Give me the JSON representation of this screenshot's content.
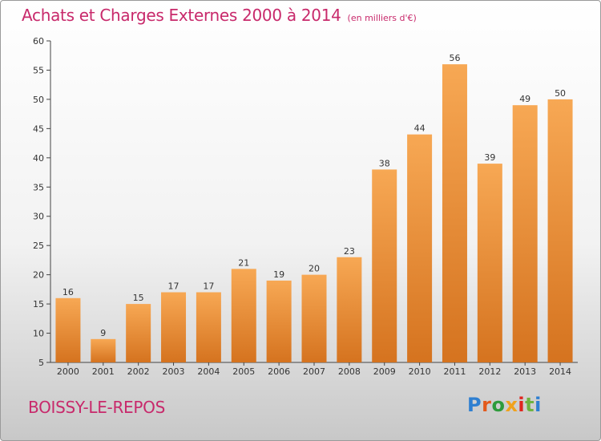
{
  "title": "Achats et Charges Externes 2000 à 2014",
  "unit": "(en milliers d'€)",
  "place": "BOISSY-LE-REPOS",
  "logo": {
    "text": "Proxiti",
    "letter_colors": [
      "#2e7fd1",
      "#e35a1c",
      "#2e9b3b",
      "#f0a21c",
      "#e0261f",
      "#6db33f",
      "#2e7fd1"
    ]
  },
  "colors": {
    "bar_top": "#f7a854",
    "bar_bottom": "#d5731f",
    "title": "#c8296b"
  },
  "chart_data": {
    "type": "bar",
    "title": "Achats et Charges Externes 2000 à 2014",
    "categories": [
      "2000",
      "2001",
      "2002",
      "2003",
      "2004",
      "2005",
      "2006",
      "2007",
      "2008",
      "2009",
      "2010",
      "2011",
      "2012",
      "2013",
      "2014"
    ],
    "values": [
      16,
      9,
      15,
      17,
      17,
      21,
      19,
      20,
      23,
      38,
      44,
      56,
      39,
      49,
      50
    ],
    "ylim": [
      5,
      60
    ],
    "yticks": [
      5,
      10,
      15,
      20,
      25,
      30,
      35,
      40,
      45,
      50,
      55,
      60
    ],
    "grid": false,
    "xlabel": "",
    "ylabel": ""
  }
}
